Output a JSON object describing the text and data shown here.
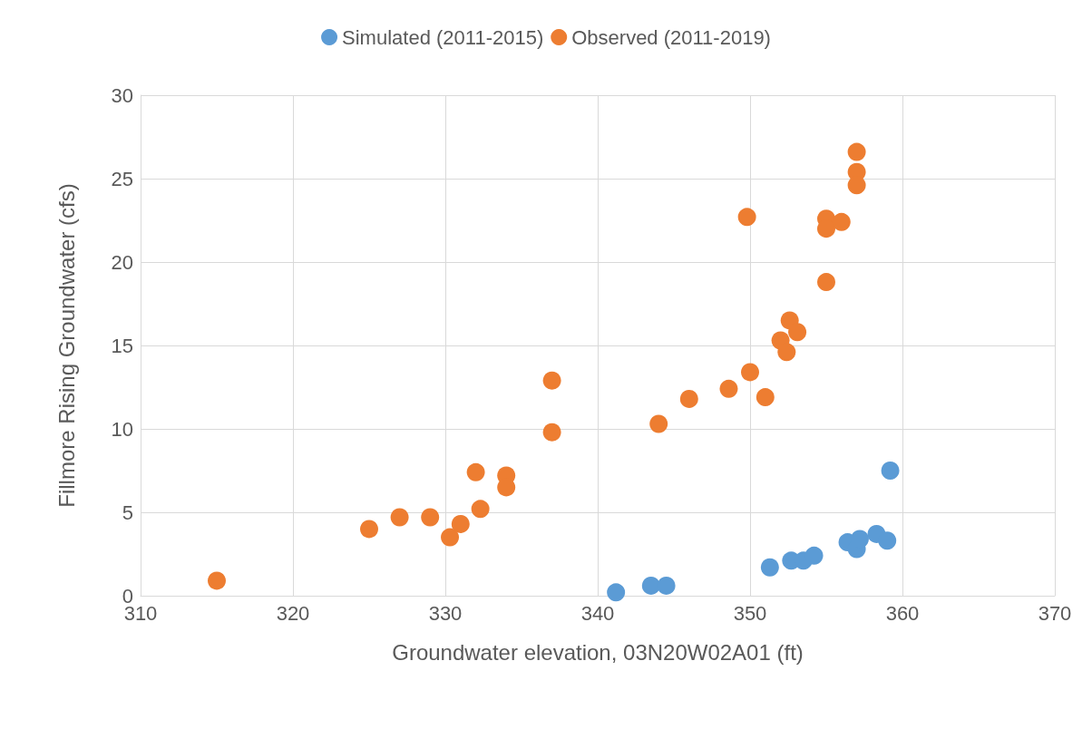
{
  "chart_data": {
    "type": "scatter",
    "xlabel": "Groundwater elevation, 03N20W02A01 (ft)",
    "ylabel": "Fillmore Rising Groundwater (cfs)",
    "xlim": [
      310,
      370
    ],
    "xticks": [
      310,
      320,
      330,
      340,
      350,
      360,
      370
    ],
    "ylim": [
      0,
      30
    ],
    "yticks": [
      0,
      5,
      10,
      15,
      20,
      25,
      30
    ],
    "grid": true,
    "legend": "top",
    "marker": "circle",
    "series": [
      {
        "name": "Simulated (2011-2015)",
        "color": "#5b9bd5",
        "x": [
          341.2,
          343.5,
          344.5,
          351.3,
          352.7,
          353.5,
          354.2,
          356.4,
          357,
          357.2,
          358.3,
          359,
          359.2
        ],
        "values": [
          0.2,
          0.6,
          0.6,
          1.7,
          2.1,
          2.1,
          2.4,
          3.2,
          2.8,
          3.4,
          3.7,
          3.3,
          7.5
        ]
      },
      {
        "name": "Observed (2011-2019)",
        "color": "#ed7d31",
        "x": [
          315,
          325,
          327,
          329,
          330.3,
          331,
          332,
          332.3,
          334,
          334,
          337,
          337,
          344,
          346,
          348.6,
          350,
          351,
          349.8,
          352,
          352.4,
          352.6,
          353.1,
          355,
          355,
          355,
          356,
          357,
          357,
          357
        ],
        "values": [
          0.9,
          4.0,
          4.7,
          4.7,
          3.5,
          4.3,
          7.4,
          5.2,
          7.2,
          6.5,
          12.9,
          9.8,
          10.3,
          11.8,
          12.4,
          13.4,
          11.9,
          22.7,
          15.3,
          14.6,
          16.5,
          15.8,
          18.8,
          22.6,
          22.0,
          22.4,
          26.6,
          25.4,
          24.6
        ]
      }
    ]
  }
}
